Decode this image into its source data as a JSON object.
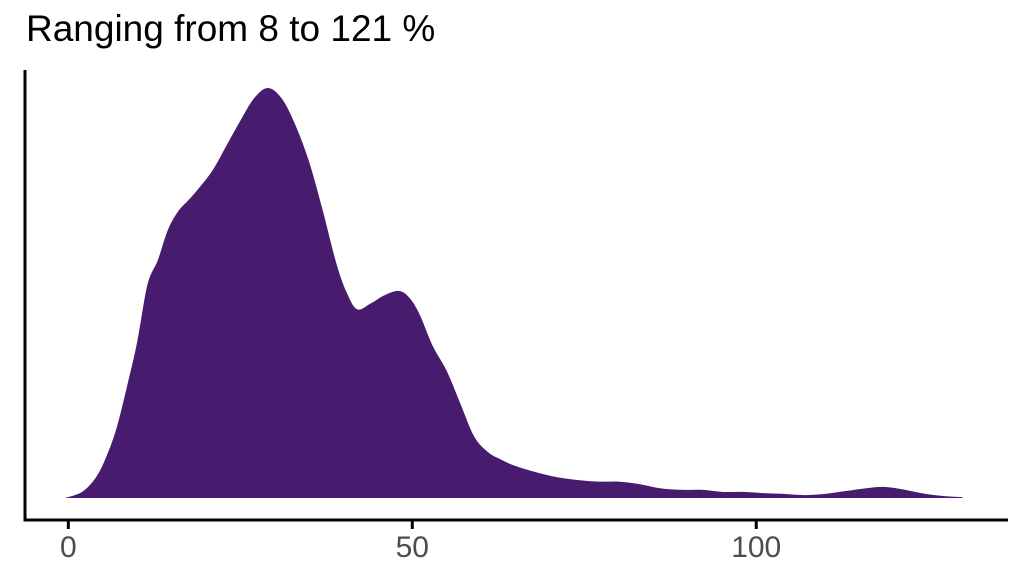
{
  "chart_data": {
    "type": "area",
    "subtype": "density",
    "title": "Ranging from 8 to 121 %",
    "xlabel": "",
    "ylabel": "",
    "x_tick_values": [
      0,
      50,
      100
    ],
    "x_tick_labels": [
      "0",
      "50",
      "100"
    ],
    "xlim": [
      -6.3,
      136.6
    ],
    "ylim": [
      0,
      1.05
    ],
    "grid": false,
    "legend": "none",
    "y_axis_labels_shown": false,
    "colors": {
      "fill": "#471c6e",
      "axis_line": "#000000",
      "tick_text": "#4d4d4d",
      "title_text": "#000000",
      "background": "#ffffff"
    },
    "series": [
      {
        "name": "density",
        "x_unit": "%",
        "y_unit": "density (normalized, 1 = mode at ~29 %)",
        "points": [
          [
            -0.5,
            0.0
          ],
          [
            2,
            0.015
          ],
          [
            4,
            0.05
          ],
          [
            5.5,
            0.1
          ],
          [
            7,
            0.17
          ],
          [
            8.5,
            0.27
          ],
          [
            10,
            0.38
          ],
          [
            11.5,
            0.52
          ],
          [
            13,
            0.58
          ],
          [
            14.5,
            0.655
          ],
          [
            16,
            0.7
          ],
          [
            17.5,
            0.727
          ],
          [
            19,
            0.756
          ],
          [
            21,
            0.8
          ],
          [
            23,
            0.86
          ],
          [
            25,
            0.92
          ],
          [
            27,
            0.975
          ],
          [
            29,
            1.0
          ],
          [
            31,
            0.975
          ],
          [
            33,
            0.91
          ],
          [
            35,
            0.82
          ],
          [
            37,
            0.7
          ],
          [
            39,
            0.57
          ],
          [
            40.5,
            0.5
          ],
          [
            42,
            0.46
          ],
          [
            44,
            0.475
          ],
          [
            46,
            0.495
          ],
          [
            48,
            0.505
          ],
          [
            49.5,
            0.49
          ],
          [
            51,
            0.45
          ],
          [
            53,
            0.37
          ],
          [
            55,
            0.31
          ],
          [
            57,
            0.23
          ],
          [
            59,
            0.15
          ],
          [
            61,
            0.112
          ],
          [
            63,
            0.093
          ],
          [
            65,
            0.078
          ],
          [
            68,
            0.063
          ],
          [
            71,
            0.051
          ],
          [
            74,
            0.044
          ],
          [
            77,
            0.04
          ],
          [
            80,
            0.04
          ],
          [
            83,
            0.034
          ],
          [
            86,
            0.024
          ],
          [
            89,
            0.02
          ],
          [
            92,
            0.02
          ],
          [
            95,
            0.015
          ],
          [
            98,
            0.015
          ],
          [
            101,
            0.012
          ],
          [
            104,
            0.01
          ],
          [
            107,
            0.007
          ],
          [
            110,
            0.01
          ],
          [
            113,
            0.017
          ],
          [
            116,
            0.024
          ],
          [
            118.5,
            0.027
          ],
          [
            121,
            0.022
          ],
          [
            124,
            0.012
          ],
          [
            127,
            0.005
          ],
          [
            130,
            0.002
          ]
        ]
      }
    ]
  }
}
